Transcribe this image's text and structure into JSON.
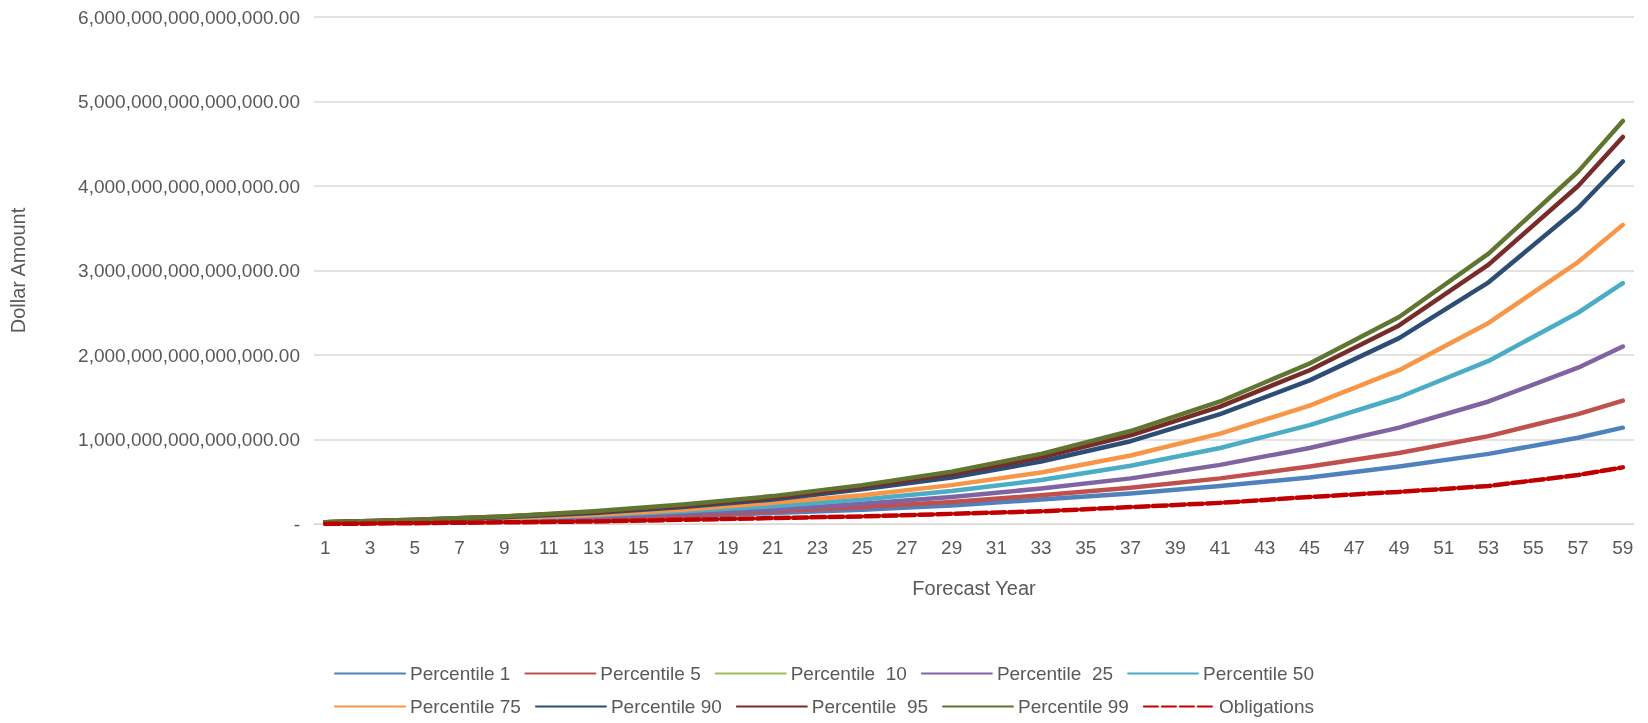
{
  "chart_data": {
    "type": "line",
    "xlabel": "Forecast Year",
    "ylabel": "Dollar Amount",
    "x": [
      1,
      5,
      9,
      13,
      17,
      21,
      25,
      29,
      33,
      37,
      41,
      45,
      49,
      53,
      57,
      59
    ],
    "series": [
      {
        "name": "Percentile 1",
        "color": "#4f81bd",
        "values": [
          20000000000000,
          30000000000000,
          40000000000000,
          60000000000000,
          90000000000000,
          130000000000000,
          170000000000000,
          220000000000000,
          290000000000000,
          360000000000000,
          450000000000000,
          550000000000000,
          680000000000000,
          830000000000000,
          1020000000000000,
          1140000000000000
        ]
      },
      {
        "name": "Percentile 5",
        "color": "#c0504d",
        "values": [
          20000000000000,
          30000000000000,
          50000000000000,
          70000000000000,
          100000000000000,
          150000000000000,
          200000000000000,
          260000000000000,
          340000000000000,
          430000000000000,
          540000000000000,
          680000000000000,
          840000000000000,
          1040000000000000,
          1300000000000000,
          1460000000000000
        ]
      },
      {
        "name": "Percentile  10",
        "color": "#9bbb59",
        "values": [
          null,
          null,
          null,
          null,
          null,
          null,
          null,
          null,
          null,
          null,
          null,
          null,
          null,
          null,
          null,
          null
        ]
      },
      {
        "name": "Percentile  25",
        "color": "#8064a2",
        "values": [
          20000000000000,
          30000000000000,
          50000000000000,
          80000000000000,
          120000000000000,
          170000000000000,
          240000000000000,
          320000000000000,
          420000000000000,
          540000000000000,
          700000000000000,
          900000000000000,
          1140000000000000,
          1450000000000000,
          1850000000000000,
          2100000000000000
        ]
      },
      {
        "name": "Percentile 50",
        "color": "#4bacc6",
        "values": [
          20000000000000,
          40000000000000,
          60000000000000,
          100000000000000,
          150000000000000,
          210000000000000,
          290000000000000,
          390000000000000,
          520000000000000,
          690000000000000,
          900000000000000,
          1170000000000000,
          1500000000000000,
          1930000000000000,
          2500000000000000,
          2850000000000000
        ]
      },
      {
        "name": "Percentile 75",
        "color": "#f79646",
        "values": [
          20000000000000,
          40000000000000,
          70000000000000,
          110000000000000,
          170000000000000,
          250000000000000,
          340000000000000,
          460000000000000,
          610000000000000,
          810000000000000,
          1070000000000000,
          1400000000000000,
          1820000000000000,
          2380000000000000,
          3100000000000000,
          3540000000000000
        ]
      },
      {
        "name": "Percentile 90",
        "color": "#2c4d75",
        "values": [
          20000000000000,
          40000000000000,
          80000000000000,
          130000000000000,
          200000000000000,
          290000000000000,
          410000000000000,
          550000000000000,
          740000000000000,
          980000000000000,
          1300000000000000,
          1700000000000000,
          2200000000000000,
          2860000000000000,
          3740000000000000,
          4290000000000000
        ]
      },
      {
        "name": "Percentile  95",
        "color": "#772c2a",
        "values": [
          20000000000000,
          50000000000000,
          90000000000000,
          140000000000000,
          220000000000000,
          310000000000000,
          440000000000000,
          590000000000000,
          790000000000000,
          1050000000000000,
          1390000000000000,
          1820000000000000,
          2350000000000000,
          3070000000000000,
          4000000000000000,
          4580000000000000
        ]
      },
      {
        "name": "Percentile 99",
        "color": "#5f7530",
        "values": [
          20000000000000,
          50000000000000,
          90000000000000,
          150000000000000,
          230000000000000,
          330000000000000,
          460000000000000,
          620000000000000,
          830000000000000,
          1100000000000000,
          1450000000000000,
          1900000000000000,
          2450000000000000,
          3200000000000000,
          4170000000000000,
          4770000000000000
        ]
      },
      {
        "name": "Obligations",
        "color": "#c00000",
        "line_style": "dashed",
        "values": [
          0,
          10000000000000,
          20000000000000,
          30000000000000,
          50000000000000,
          70000000000000,
          90000000000000,
          120000000000000,
          150000000000000,
          200000000000000,
          250000000000000,
          320000000000000,
          380000000000000,
          450000000000000,
          580000000000000,
          670000000000000
        ]
      }
    ],
    "xlim": [
      0.5,
      59.5
    ],
    "xticks": [
      1,
      3,
      5,
      7,
      9,
      11,
      13,
      15,
      17,
      19,
      21,
      23,
      25,
      27,
      29,
      31,
      33,
      35,
      37,
      39,
      41,
      43,
      45,
      47,
      49,
      51,
      53,
      55,
      57,
      59
    ],
    "ylim": [
      0,
      6000000000000000
    ],
    "yticks": [
      {
        "value": 0,
        "label": "-"
      },
      {
        "value": 1000000000000000,
        "label": "1,000,000,000,000,000.00"
      },
      {
        "value": 2000000000000000,
        "label": "2,000,000,000,000,000.00"
      },
      {
        "value": 3000000000000000,
        "label": "3,000,000,000,000,000.00"
      },
      {
        "value": 4000000000000000,
        "label": "4,000,000,000,000,000.00"
      },
      {
        "value": 5000000000000000,
        "label": "5,000,000,000,000,000.00"
      },
      {
        "value": 6000000000000000,
        "label": "6,000,000,000,000,000.00"
      }
    ],
    "grid": "y",
    "legend": "bottom",
    "marker": "none",
    "line_style": "solid"
  }
}
